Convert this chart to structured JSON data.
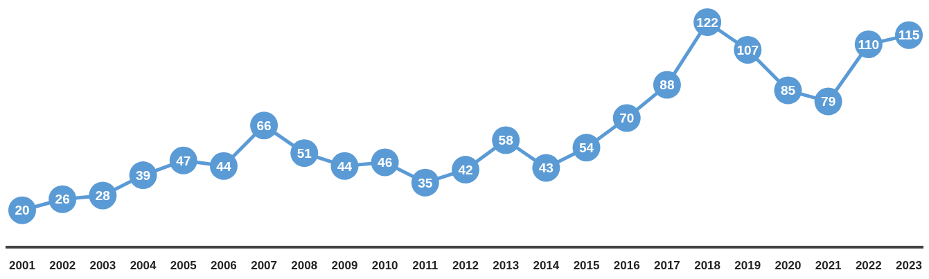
{
  "chart_data": {
    "type": "line",
    "categories": [
      "2001",
      "2002",
      "2003",
      "2004",
      "2005",
      "2006",
      "2007",
      "2008",
      "2009",
      "2010",
      "2011",
      "2012",
      "2013",
      "2014",
      "2015",
      "2016",
      "2017",
      "2018",
      "2019",
      "2020",
      "2021",
      "2022",
      "2023"
    ],
    "series": [
      {
        "color": "#5b9bd5",
        "values": [
          20,
          26,
          28,
          39,
          47,
          44,
          66,
          51,
          44,
          46,
          35,
          42,
          58,
          43,
          54,
          70,
          88,
          122,
          107,
          85,
          79,
          110,
          115
        ]
      }
    ],
    "data_labels": true,
    "marker": "circle",
    "line_style": "solid"
  }
}
